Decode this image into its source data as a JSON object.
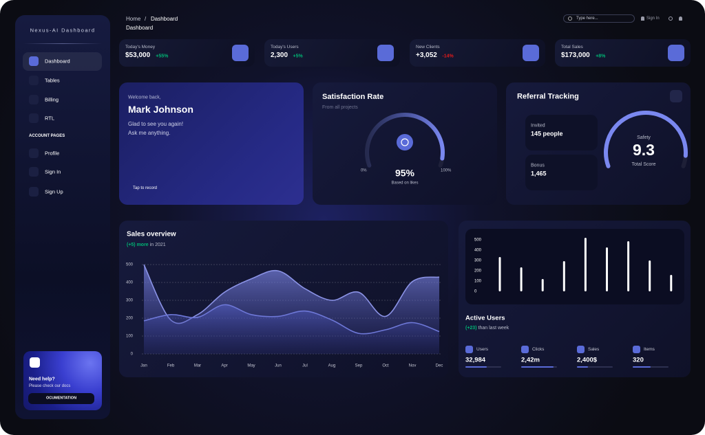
{
  "sidebar": {
    "brand": "Nexus-AI Dashboard",
    "nav": [
      "Dashboard",
      "Tables",
      "Billing",
      "RTL"
    ],
    "section": "ACCOUNT PAGES",
    "account_nav": [
      "Profile",
      "Sign In",
      "Sign Up"
    ],
    "help": {
      "title": "Need help?",
      "text": "Please check our docs",
      "button": "OCUMENTATION"
    }
  },
  "header": {
    "breadcrumb": [
      "Home",
      "/",
      "Dashboard"
    ],
    "title": "Dashboard",
    "search_placeholder": "Type here...",
    "sign_in": "Sign In"
  },
  "stats": [
    {
      "label": "Today's Money",
      "value": "$53,000",
      "change": "+55%",
      "color": "#01b574"
    },
    {
      "label": "Today's Users",
      "value": "2,300",
      "change": "+5%",
      "color": "#01b574"
    },
    {
      "label": "New Clients",
      "value": "+3,052",
      "change": "-14%",
      "color": "#e31a1a"
    },
    {
      "label": "Total Sales",
      "value": "$173,000",
      "change": "+8%",
      "color": "#01b574"
    }
  ],
  "welcome": {
    "greeting": "Welcome back,",
    "name": "Mark Johnson",
    "lines": [
      "Glad to see you again!",
      "Ask me anything."
    ],
    "action": "Tap to record"
  },
  "referral": {
    "title": "Referral Tracking",
    "items": [
      {
        "label": "Invited",
        "value": "145 people"
      },
      {
        "label": "Bonus",
        "value": "1,465"
      }
    ]
  },
  "active_users": {
    "stats": [
      {
        "label": "Users",
        "value": "32,984",
        "progress": 60
      },
      {
        "label": "Clicks",
        "value": "2,42m",
        "progress": 90
      },
      {
        "label": "Sales",
        "value": "2,400$",
        "progress": 30
      },
      {
        "label": "Items",
        "value": "320",
        "progress": 50
      }
    ]
  },
  "chart_data": [
    {
      "type": "gauge",
      "title": "Satisfaction Rate",
      "subtitle": "From all projects",
      "value": 95,
      "value_label": "95%",
      "caption": "Based on likes",
      "ylim": [
        0,
        100
      ],
      "yticks": [
        {
          "value": 0,
          "label": "0%"
        },
        {
          "value": 100,
          "label": "100%"
        }
      ],
      "color": "#7a88f0"
    },
    {
      "type": "gauge",
      "title": "Safety",
      "value": 9.3,
      "caption": "Total Score",
      "ylim": [
        0,
        10
      ],
      "color": "#7a88f0"
    },
    {
      "type": "area",
      "title": "Sales overview",
      "subtitle_highlight": "(+5) more",
      "subtitle": "in 2021",
      "categories": [
        "Jan",
        "Feb",
        "Mar",
        "Apr",
        "May",
        "Jun",
        "Jul",
        "Aug",
        "Sep",
        "Oct",
        "Nov",
        "Dec"
      ],
      "series": [
        {
          "color": "#8b93e6",
          "values": [
            500,
            190,
            220,
            345,
            420,
            465,
            365,
            300,
            345,
            210,
            405,
            430
          ]
        },
        {
          "color": "#6e78d8",
          "values": [
            185,
            220,
            205,
            275,
            220,
            210,
            240,
            190,
            115,
            135,
            175,
            125
          ]
        }
      ],
      "ylim": [
        0,
        500
      ],
      "yticks": [
        0,
        100,
        200,
        300,
        400,
        500
      ],
      "grid": true
    },
    {
      "type": "bar",
      "title": "Active Users",
      "subtitle_highlight": "(+23)",
      "subtitle": "than last week",
      "categories": [
        null,
        null,
        null,
        null,
        null,
        null,
        null,
        null,
        null
      ],
      "values": [
        333,
        233,
        120,
        293,
        520,
        427,
        487,
        300,
        160
      ],
      "color": "#ffffff",
      "ylim": [
        0,
        550
      ],
      "yticks": [
        0,
        100,
        200,
        300,
        400,
        500
      ]
    }
  ]
}
